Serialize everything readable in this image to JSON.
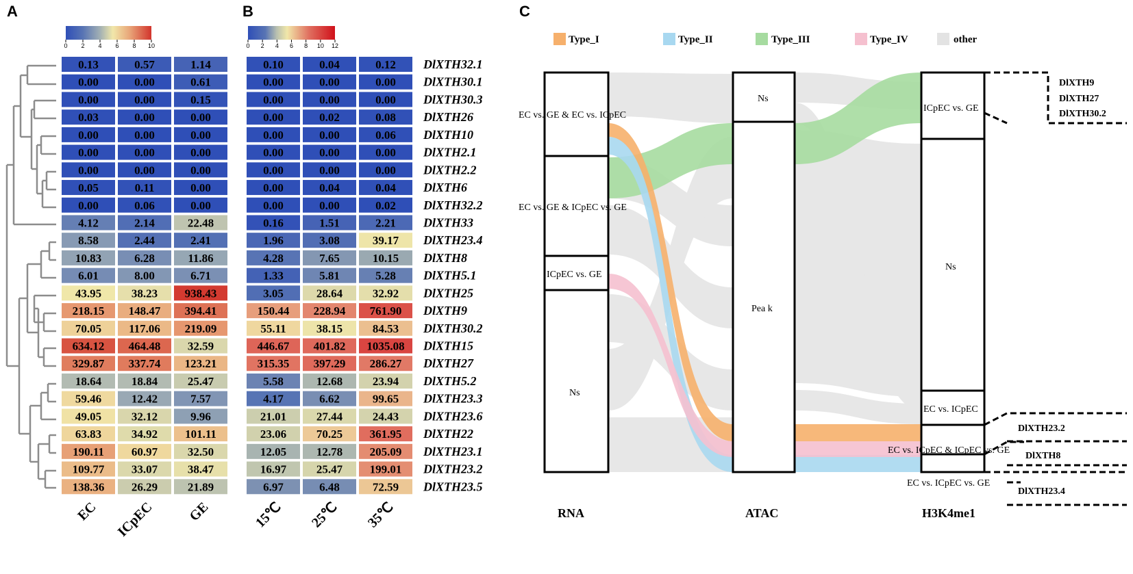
{
  "panels": {
    "a": "A",
    "b": "B",
    "c": "C"
  },
  "genes": [
    "DlXTH32.1",
    "DlXTH30.1",
    "DlXTH30.3",
    "DlXTH26",
    "DlXTH10",
    "DlXTH2.1",
    "DlXTH2.2",
    "DlXTH6",
    "DlXTH32.2",
    "DlXTH33",
    "DlXTH23.4",
    "DlXTH8",
    "DlXTH5.1",
    "DlXTH25",
    "DlXTH9",
    "DlXTH30.2",
    "DlXTH15",
    "DlXTH27",
    "DlXTH5.2",
    "DlXTH23.3",
    "DlXTH23.6",
    "DlXTH22",
    "DlXTH23.1",
    "DlXTH23.2",
    "DlXTH23.5"
  ],
  "chart_data": [
    {
      "type": "heatmap",
      "panel": "A",
      "columns": [
        "EC",
        "ICpEC",
        "GE"
      ],
      "colorbar": {
        "ticks": [
          "0",
          "2",
          "4",
          "6",
          "8",
          "10"
        ],
        "range": [
          0,
          10
        ],
        "scale": "log2(x+1)"
      },
      "values": [
        [
          "0.13",
          "0.57",
          "1.14"
        ],
        [
          "0.00",
          "0.00",
          "0.61"
        ],
        [
          "0.00",
          "0.00",
          "0.15"
        ],
        [
          "0.03",
          "0.00",
          "0.00"
        ],
        [
          "0.00",
          "0.00",
          "0.00"
        ],
        [
          "0.00",
          "0.00",
          "0.00"
        ],
        [
          "0.00",
          "0.00",
          "0.00"
        ],
        [
          "0.05",
          "0.11",
          "0.00"
        ],
        [
          "0.00",
          "0.06",
          "0.00"
        ],
        [
          "4.12",
          "2.14",
          "22.48"
        ],
        [
          "8.58",
          "2.44",
          "2.41"
        ],
        [
          "10.83",
          "6.28",
          "11.86"
        ],
        [
          "6.01",
          "8.00",
          "6.71"
        ],
        [
          "43.95",
          "38.23",
          "938.43"
        ],
        [
          "218.15",
          "148.47",
          "394.41"
        ],
        [
          "70.05",
          "117.06",
          "219.09"
        ],
        [
          "634.12",
          "464.48",
          "32.59"
        ],
        [
          "329.87",
          "337.74",
          "123.21"
        ],
        [
          "18.64",
          "18.84",
          "25.47"
        ],
        [
          "59.46",
          "12.42",
          "7.57"
        ],
        [
          "49.05",
          "32.12",
          "9.96"
        ],
        [
          "63.83",
          "34.92",
          "101.11"
        ],
        [
          "190.11",
          "60.97",
          "32.50"
        ],
        [
          "109.77",
          "33.07",
          "38.47"
        ],
        [
          "138.36",
          "26.29",
          "21.89"
        ]
      ]
    },
    {
      "type": "heatmap",
      "panel": "B",
      "columns": [
        "15℃",
        "25℃",
        "35℃"
      ],
      "colorbar": {
        "ticks": [
          "0",
          "2",
          "4",
          "6",
          "8",
          "10",
          "12"
        ],
        "range": [
          0,
          12
        ],
        "scale": "log2(x+1)"
      },
      "values": [
        [
          "0.10",
          "0.04",
          "0.12"
        ],
        [
          "0.00",
          "0.00",
          "0.00"
        ],
        [
          "0.00",
          "0.00",
          "0.00"
        ],
        [
          "0.00",
          "0.02",
          "0.08"
        ],
        [
          "0.00",
          "0.00",
          "0.06"
        ],
        [
          "0.00",
          "0.00",
          "0.00"
        ],
        [
          "0.00",
          "0.00",
          "0.00"
        ],
        [
          "0.00",
          "0.04",
          "0.04"
        ],
        [
          "0.00",
          "0.00",
          "0.02"
        ],
        [
          "0.16",
          "1.51",
          "2.21"
        ],
        [
          "1.96",
          "3.08",
          "39.17"
        ],
        [
          "4.28",
          "7.65",
          "10.15"
        ],
        [
          "1.33",
          "5.81",
          "5.28"
        ],
        [
          "3.05",
          "28.64",
          "32.92"
        ],
        [
          "150.44",
          "228.94",
          "761.90"
        ],
        [
          "55.11",
          "38.15",
          "84.53"
        ],
        [
          "446.67",
          "401.82",
          "1035.08"
        ],
        [
          "315.35",
          "397.29",
          "286.27"
        ],
        [
          "5.58",
          "12.68",
          "23.94"
        ],
        [
          "4.17",
          "6.62",
          "99.65"
        ],
        [
          "21.01",
          "27.44",
          "24.43"
        ],
        [
          "23.06",
          "70.25",
          "361.95"
        ],
        [
          "12.05",
          "12.78",
          "205.09"
        ],
        [
          "16.97",
          "25.47",
          "199.01"
        ],
        [
          "6.97",
          "6.48",
          "72.59"
        ]
      ]
    },
    {
      "type": "sankey",
      "panel": "C",
      "legend": [
        {
          "label": "Type_I",
          "color": "#f6b06c"
        },
        {
          "label": "Type_II",
          "color": "#a8d8f0"
        },
        {
          "label": "Type_III",
          "color": "#a6dba0"
        },
        {
          "label": "Type_IV",
          "color": "#f5c0cf"
        },
        {
          "label": "other",
          "color": "#e3e3e3"
        }
      ],
      "columns": [
        {
          "title": "RNA",
          "nodes": [
            "EC vs. GE & EC vs. ICpEC",
            "EC vs. GE & ICpEC vs. GE",
            "ICpEC vs. GE",
            "Ns"
          ],
          "shares": [
            0.2,
            0.24,
            0.08,
            0.48
          ]
        },
        {
          "title": "ATAC",
          "nodes": [
            "Ns",
            "Pea k"
          ],
          "shares": [
            0.122,
            0.878
          ]
        },
        {
          "title": "H3K4me1",
          "nodes": [
            "ICpEC vs. GE",
            "Ns",
            "EC  vs. ICpEC",
            "EC vs. ICpEC & ICpEC vs. GE",
            "EC vs. ICpEC vs. GE"
          ],
          "shares": [
            0.16,
            0.6,
            0.085,
            0.11,
            0.045
          ]
        }
      ],
      "highlighted_flows": [
        {
          "type": "Type_I",
          "path": [
            "EC vs. GE & EC vs. ICpEC",
            "Pea k",
            "EC vs. ICpEC & ICpEC vs. GE"
          ],
          "genes": [
            "DlXTH23.2"
          ]
        },
        {
          "type": "Type_II",
          "path": [
            "EC vs. GE & EC vs. ICpEC",
            "Pea k",
            "EC vs. ICpEC vs. GE"
          ],
          "genes": [
            "DlXTH23.4"
          ]
        },
        {
          "type": "Type_III",
          "path": [
            "EC vs. GE & ICpEC vs. GE",
            "Pea k",
            "ICpEC vs. GE"
          ],
          "genes": [
            "DlXTH9",
            "DlXTH27",
            "DlXTH30.2"
          ]
        },
        {
          "type": "Type_IV",
          "path": [
            "ICpEC vs. GE",
            "Pea k",
            "EC vs. ICpEC & ICpEC vs. GE"
          ],
          "genes": [
            "DlXTH8"
          ]
        }
      ]
    }
  ]
}
